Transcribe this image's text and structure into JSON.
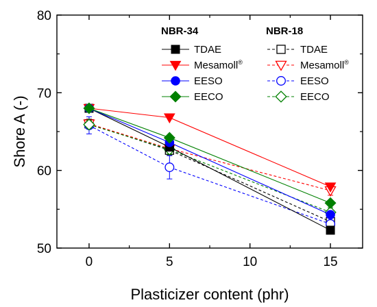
{
  "chart_data": {
    "type": "line",
    "title": "",
    "xlabel": "Plasticizer content (phr)",
    "ylabel": "Shore A (-)",
    "xlim": [
      -2,
      17
    ],
    "ylim": [
      50,
      80
    ],
    "xticks": [
      0,
      5,
      10,
      15
    ],
    "yticks": [
      50,
      60,
      70,
      80
    ],
    "grid": false,
    "legend_position": "top-right",
    "x": [
      0,
      5,
      15
    ],
    "groups": [
      {
        "name": "NBR-34",
        "line_style": "solid",
        "marker_fill": "filled"
      },
      {
        "name": "NBR-18",
        "line_style": "dashed",
        "marker_fill": "open"
      }
    ],
    "series": [
      {
        "group": 0,
        "name": "TDAE",
        "name_sup": "",
        "color": "#000000",
        "marker": "square",
        "values": [
          68.0,
          63.0,
          52.3
        ]
      },
      {
        "group": 0,
        "name": "Mesamoll",
        "name_sup": "®",
        "color": "#ff0000",
        "marker": "triangle-down",
        "values": [
          68.0,
          66.8,
          57.9
        ]
      },
      {
        "group": 0,
        "name": "EESO",
        "name_sup": "",
        "color": "#0000ff",
        "marker": "circle",
        "values": [
          68.0,
          63.6,
          54.3
        ]
      },
      {
        "group": 0,
        "name": "EECO",
        "name_sup": "",
        "color": "#008000",
        "marker": "diamond",
        "values": [
          68.0,
          64.2,
          55.8
        ]
      },
      {
        "group": 1,
        "name": "TDAE",
        "name_sup": "",
        "color": "#000000",
        "marker": "square",
        "values": [
          66.0,
          62.6,
          53.4
        ],
        "error": [
          0.6,
          0.6,
          0.6
        ]
      },
      {
        "group": 1,
        "name": "Mesamoll",
        "name_sup": "®",
        "color": "#ff0000",
        "marker": "triangle-down",
        "values": [
          66.0,
          62.8,
          57.4
        ],
        "error": [
          0.5,
          0.5,
          0.6
        ]
      },
      {
        "group": 1,
        "name": "EESO",
        "name_sup": "",
        "color": "#0000ff",
        "marker": "circle",
        "values": [
          65.8,
          60.4,
          53.1
        ],
        "error": [
          1.1,
          1.5,
          0.9
        ]
      },
      {
        "group": 1,
        "name": "EECO",
        "name_sup": "",
        "color": "#008000",
        "marker": "diamond",
        "values": [
          65.9,
          62.7,
          54.6
        ],
        "error": [
          0.5,
          0.6,
          0.6
        ]
      }
    ]
  }
}
